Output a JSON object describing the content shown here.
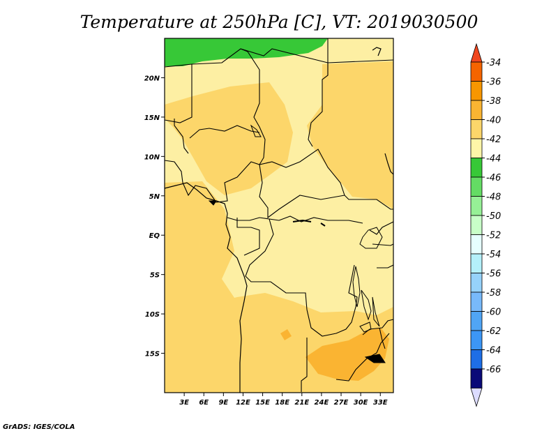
{
  "title": "Temperature at 250hPa [C], VT: 2019030500",
  "credit": "GrADS: IGES/COLA",
  "map": {
    "lon_range": [
      0,
      35
    ],
    "lat_range": [
      -20,
      25
    ],
    "lat_ticks": [
      {
        "value": 20,
        "label": "20N"
      },
      {
        "value": 15,
        "label": "15N"
      },
      {
        "value": 10,
        "label": "10N"
      },
      {
        "value": 5,
        "label": "5N"
      },
      {
        "value": 0,
        "label": "EQ"
      },
      {
        "value": -5,
        "label": "5S"
      },
      {
        "value": -10,
        "label": "10S"
      },
      {
        "value": -15,
        "label": "15S"
      }
    ],
    "lon_ticks": [
      {
        "value": 3,
        "label": "3E"
      },
      {
        "value": 6,
        "label": "6E"
      },
      {
        "value": 9,
        "label": "9E"
      },
      {
        "value": 12,
        "label": "12E"
      },
      {
        "value": 15,
        "label": "15E"
      },
      {
        "value": 18,
        "label": "18E"
      },
      {
        "value": 21,
        "label": "21E"
      },
      {
        "value": 24,
        "label": "24E"
      },
      {
        "value": 27,
        "label": "27E"
      },
      {
        "value": 30,
        "label": "30E"
      },
      {
        "value": 33,
        "label": "33E"
      }
    ]
  },
  "colorbar": {
    "labels": [
      "-34",
      "-36",
      "-38",
      "-40",
      "-42",
      "-44",
      "-46",
      "-48",
      "-50",
      "-52",
      "-54",
      "-56",
      "-58",
      "-60",
      "-62",
      "-64",
      "-66"
    ],
    "top_color": "#f0461e",
    "colors": [
      "#f56400",
      "#f79600",
      "#fab432",
      "#fcd66a",
      "#fff6a8",
      "#37c837",
      "#64dc64",
      "#96f096",
      "#c8ffc8",
      "#e6ffff",
      "#b4f0fa",
      "#96d2fa",
      "#78b9fa",
      "#50a5f5",
      "#3c96f5",
      "#1e6ee6",
      "#0a0a78"
    ],
    "bottom_color": "#dcdcff"
  }
}
